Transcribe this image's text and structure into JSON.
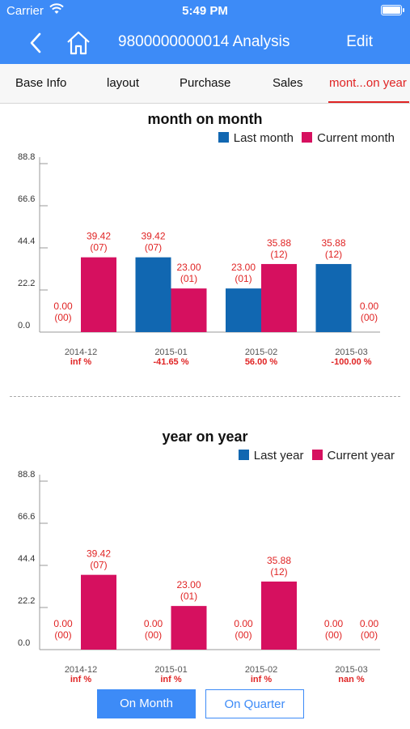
{
  "status": {
    "carrier": "Carrier",
    "time": "5:49 PM"
  },
  "nav": {
    "title": "9800000000014 Analysis",
    "edit": "Edit"
  },
  "tabs": [
    {
      "label": "Base Info"
    },
    {
      "label": "layout"
    },
    {
      "label": "Purchase"
    },
    {
      "label": "Sales"
    },
    {
      "label": "mont...on year"
    }
  ],
  "colors": {
    "last": "#1167b1",
    "current": "#d6105f",
    "label": "#e02424",
    "accent": "#3d8bf7"
  },
  "buttons": {
    "on_month": "On Month",
    "on_quarter": "On Quarter"
  },
  "chart_data": [
    {
      "type": "bar",
      "title": "month on month",
      "legend": [
        "Last month",
        "Current month"
      ],
      "legend_position": "top-right",
      "categories": [
        "2014-12",
        "2015-01",
        "2015-02",
        "2015-03"
      ],
      "yticks": [
        "0.0",
        "22.2",
        "44.4",
        "66.6",
        "88.8"
      ],
      "ylim": [
        0,
        88.8
      ],
      "series": [
        {
          "name": "Last month",
          "values": [
            0,
            39.42,
            23.0,
            35.88
          ],
          "labels": [
            "0.00",
            "39.42",
            "23.00",
            "35.88"
          ],
          "counts": [
            "(00)",
            "(07)",
            "(01)",
            "(12)"
          ]
        },
        {
          "name": "Current month",
          "values": [
            39.42,
            23.0,
            35.88,
            0
          ],
          "labels": [
            "39.42",
            "23.00",
            "35.88",
            "0.00"
          ],
          "counts": [
            "(07)",
            "(01)",
            "(12)",
            "(00)"
          ]
        }
      ],
      "changes": [
        "inf %",
        "-41.65 %",
        "56.00 %",
        "-100.00 %"
      ]
    },
    {
      "type": "bar",
      "title": "year on year",
      "legend": [
        "Last year",
        "Current year"
      ],
      "legend_position": "top-right",
      "categories": [
        "2014-12",
        "2015-01",
        "2015-02",
        "2015-03"
      ],
      "yticks": [
        "0.0",
        "22.2",
        "44.4",
        "66.6",
        "88.8"
      ],
      "ylim": [
        0,
        88.8
      ],
      "series": [
        {
          "name": "Last year",
          "values": [
            0,
            0,
            0,
            0
          ],
          "labels": [
            "0.00",
            "0.00",
            "0.00",
            "0.00"
          ],
          "counts": [
            "(00)",
            "(00)",
            "(00)",
            "(00)"
          ]
        },
        {
          "name": "Current year",
          "values": [
            39.42,
            23.0,
            35.88,
            0
          ],
          "labels": [
            "39.42",
            "23.00",
            "35.88",
            "0.00"
          ],
          "counts": [
            "(07)",
            "(01)",
            "(12)",
            "(00)"
          ]
        }
      ],
      "changes": [
        "inf %",
        "inf %",
        "inf %",
        "nan %"
      ]
    }
  ]
}
